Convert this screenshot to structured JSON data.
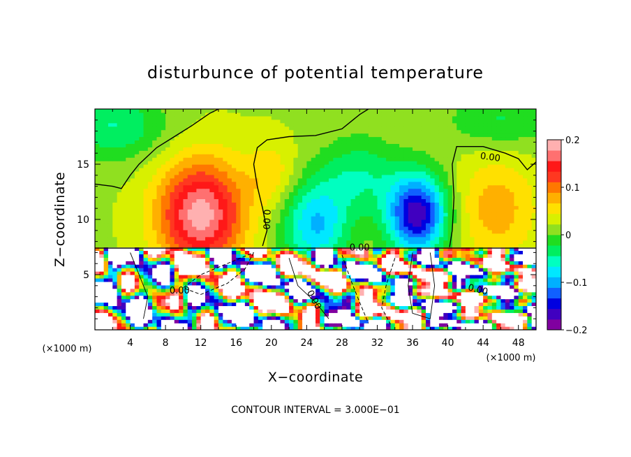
{
  "chart_data": {
    "type": "heatmap",
    "title": "disturbunce of potential temperature",
    "xlabel": "X−coordinate",
    "ylabel": "Z−coordinate",
    "x_unit": "(×1000 m)",
    "x_unit_right": "(×1000 m)",
    "xlim": [
      0,
      50
    ],
    "ylim": [
      0,
      20
    ],
    "x_ticks": [
      "4",
      "8",
      "12",
      "16",
      "20",
      "24",
      "28",
      "32",
      "36",
      "40",
      "44",
      "48"
    ],
    "y_ticks": [
      "5",
      "10",
      "15"
    ],
    "colorbar": {
      "range": [
        -0.2,
        0.2
      ],
      "ticks": [
        "0.2",
        "0.1",
        "0",
        "−0.1",
        "−0.2"
      ],
      "colors": [
        "#8000a0",
        "#4000c0",
        "#0000e0",
        "#1060ff",
        "#00b0ff",
        "#00e8ff",
        "#00ffc0",
        "#00ee60",
        "#20dd20",
        "#90e020",
        "#d8f000",
        "#ffe000",
        "#ffb000",
        "#ff7800",
        "#ff3820",
        "#ff1818",
        "#ff7070",
        "#ffb0b0"
      ]
    },
    "contour_interval": "CONTOUR INTERVAL = 3.000E−01",
    "contour_labels": [
      "0.00",
      "0.00",
      "0.00",
      "0.00",
      "0.00",
      "0.00",
      "0.00"
    ],
    "features": [
      {
        "x": 12,
        "z": 10.5,
        "value": 0.18
      },
      {
        "x": 36.5,
        "z": 10,
        "value": -0.19
      },
      {
        "x": 25,
        "z": 10,
        "value": -0.11
      },
      {
        "x": 45,
        "z": 11,
        "value": 0.06
      },
      {
        "x": 3,
        "z": 17.5,
        "value": -0.06
      }
    ]
  }
}
